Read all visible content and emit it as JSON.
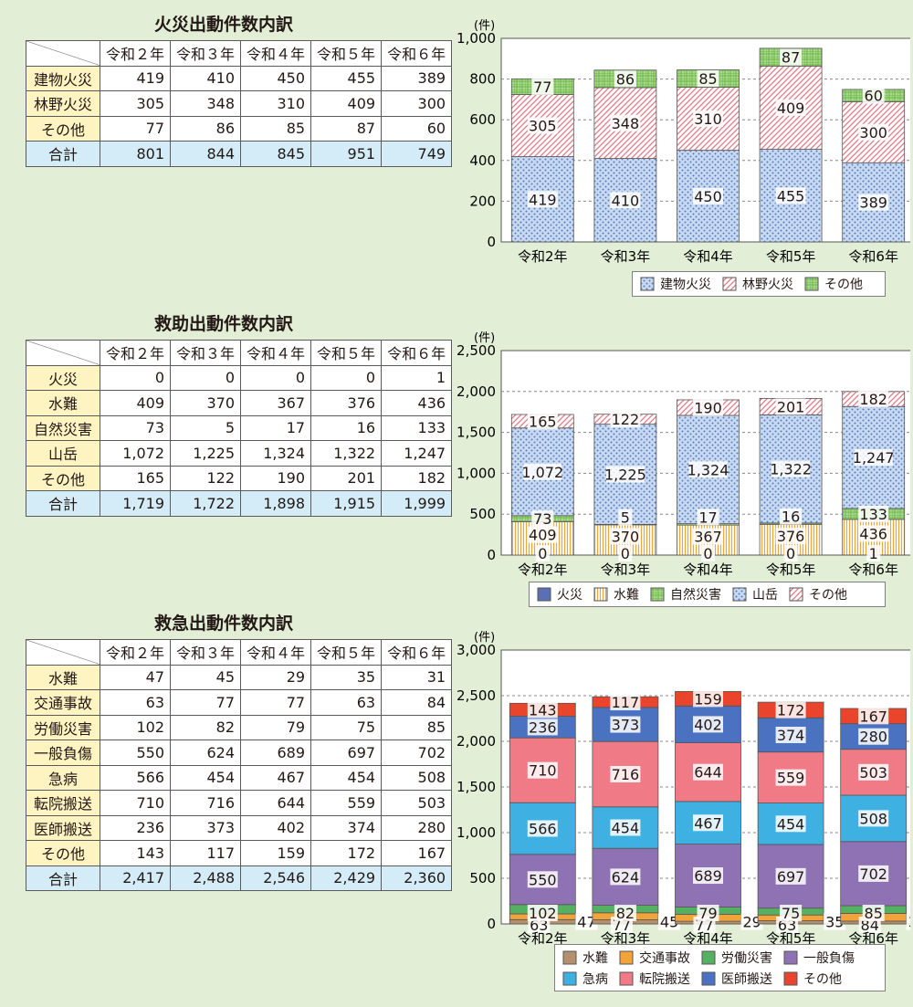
{
  "years": [
    "令和２年",
    "令和３年",
    "令和４年",
    "令和５年",
    "令和６年"
  ],
  "unit": "(件)",
  "fire": {
    "title": "火災出動件数内訳",
    "rows": [
      {
        "label": "建物火災",
        "values": [
          "419",
          "410",
          "450",
          "455",
          "389"
        ]
      },
      {
        "label": "林野火災",
        "values": [
          "305",
          "348",
          "310",
          "409",
          "300"
        ]
      },
      {
        "label": "その他",
        "values": [
          "77",
          "86",
          "85",
          "87",
          "60"
        ]
      }
    ],
    "total": {
      "label": "合計",
      "values": [
        "801",
        "844",
        "845",
        "951",
        "749"
      ]
    }
  },
  "rescue": {
    "title": "救助出動件数内訳",
    "rows": [
      {
        "label": "火災",
        "values": [
          "0",
          "0",
          "0",
          "0",
          "1"
        ]
      },
      {
        "label": "水難",
        "values": [
          "409",
          "370",
          "367",
          "376",
          "436"
        ]
      },
      {
        "label": "自然災害",
        "values": [
          "73",
          "5",
          "17",
          "16",
          "133"
        ]
      },
      {
        "label": "山岳",
        "values": [
          "1,072",
          "1,225",
          "1,324",
          "1,322",
          "1,247"
        ]
      },
      {
        "label": "その他",
        "values": [
          "165",
          "122",
          "190",
          "201",
          "182"
        ]
      }
    ],
    "total": {
      "label": "合計",
      "values": [
        "1,719",
        "1,722",
        "1,898",
        "1,915",
        "1,999"
      ]
    }
  },
  "emergency": {
    "title": "救急出動件数内訳",
    "rows": [
      {
        "label": "水難",
        "values": [
          "47",
          "45",
          "29",
          "35",
          "31"
        ]
      },
      {
        "label": "交通事故",
        "values": [
          "63",
          "77",
          "77",
          "63",
          "84"
        ]
      },
      {
        "label": "労働災害",
        "values": [
          "102",
          "82",
          "79",
          "75",
          "85"
        ]
      },
      {
        "label": "一般負傷",
        "values": [
          "550",
          "624",
          "689",
          "697",
          "702"
        ]
      },
      {
        "label": "急病",
        "values": [
          "566",
          "454",
          "467",
          "454",
          "508"
        ]
      },
      {
        "label": "転院搬送",
        "values": [
          "710",
          "716",
          "644",
          "559",
          "503"
        ]
      },
      {
        "label": "医師搬送",
        "values": [
          "236",
          "373",
          "402",
          "374",
          "280"
        ]
      },
      {
        "label": "その他",
        "values": [
          "143",
          "117",
          "159",
          "172",
          "167"
        ]
      }
    ],
    "total": {
      "label": "合計",
      "values": [
        "2,417",
        "2,488",
        "2,546",
        "2,429",
        "2,360"
      ]
    }
  },
  "chart_data": [
    {
      "type": "bar",
      "stacked": true,
      "unit": "(件)",
      "categories": [
        "令和2年",
        "令和3年",
        "令和4年",
        "令和5年",
        "令和6年"
      ],
      "ylim": [
        0,
        1000
      ],
      "yticks": [
        "0",
        "200",
        "400",
        "600",
        "800",
        "1,000"
      ],
      "grid": true,
      "legend": "bottom-right",
      "series": [
        {
          "name": "建物火災",
          "values": [
            419,
            410,
            450,
            455,
            389
          ],
          "color": "#c7daf2",
          "pattern": "dots"
        },
        {
          "name": "林野火災",
          "values": [
            305,
            348,
            310,
            409,
            300
          ],
          "color": "#f7c9cd",
          "pattern": "hatch"
        },
        {
          "name": "その他",
          "values": [
            77,
            86,
            85,
            87,
            60
          ],
          "color": "#c6e7a6",
          "pattern": "grid"
        }
      ]
    },
    {
      "type": "bar",
      "stacked": true,
      "unit": "(件)",
      "categories": [
        "令和2年",
        "令和3年",
        "令和4年",
        "令和5年",
        "令和6年"
      ],
      "ylim": [
        0,
        2500
      ],
      "yticks": [
        "0",
        "500",
        "1,000",
        "1,500",
        "2,000",
        "2,500"
      ],
      "grid": true,
      "legend": "bottom",
      "series": [
        {
          "name": "火災",
          "values": [
            0,
            0,
            0,
            0,
            1
          ],
          "color": "#5b6fb5",
          "pattern": "solid"
        },
        {
          "name": "水難",
          "values": [
            409,
            370,
            367,
            376,
            436
          ],
          "color": "#fbe7bf",
          "pattern": "vlines"
        },
        {
          "name": "自然災害",
          "values": [
            73,
            5,
            17,
            16,
            133
          ],
          "color": "#c6e7a6",
          "pattern": "grid"
        },
        {
          "name": "山岳",
          "values": [
            1072,
            1225,
            1324,
            1322,
            1247
          ],
          "color": "#c7daf2",
          "pattern": "dots"
        },
        {
          "name": "その他",
          "values": [
            165,
            122,
            190,
            201,
            182
          ],
          "color": "#f7c9cd",
          "pattern": "hatch"
        }
      ]
    },
    {
      "type": "bar",
      "stacked": true,
      "unit": "(件)",
      "categories": [
        "令和2年",
        "令和3年",
        "令和4年",
        "令和5年",
        "令和6年"
      ],
      "ylim": [
        0,
        3000
      ],
      "yticks": [
        "0",
        "500",
        "1,000",
        "1,500",
        "2,000",
        "2,500",
        "3,000"
      ],
      "grid": true,
      "legend": "bottom",
      "series": [
        {
          "name": "水難",
          "values": [
            47,
            45,
            29,
            35,
            31
          ],
          "color": "#b5906f"
        },
        {
          "name": "交通事故",
          "values": [
            63,
            77,
            77,
            63,
            84
          ],
          "color": "#f2a33a"
        },
        {
          "name": "労働災害",
          "values": [
            102,
            82,
            79,
            75,
            85
          ],
          "color": "#56b061"
        },
        {
          "name": "一般負傷",
          "values": [
            550,
            624,
            689,
            697,
            702
          ],
          "color": "#8f72b3"
        },
        {
          "name": "急病",
          "values": [
            566,
            454,
            467,
            454,
            508
          ],
          "color": "#3fb0e2"
        },
        {
          "name": "転院搬送",
          "values": [
            710,
            716,
            644,
            559,
            503
          ],
          "color": "#f07a86"
        },
        {
          "name": "医師搬送",
          "values": [
            236,
            373,
            402,
            374,
            280
          ],
          "color": "#4b72c0"
        },
        {
          "name": "その他",
          "values": [
            143,
            117,
            159,
            172,
            167
          ],
          "color": "#e8452c"
        }
      ]
    }
  ]
}
